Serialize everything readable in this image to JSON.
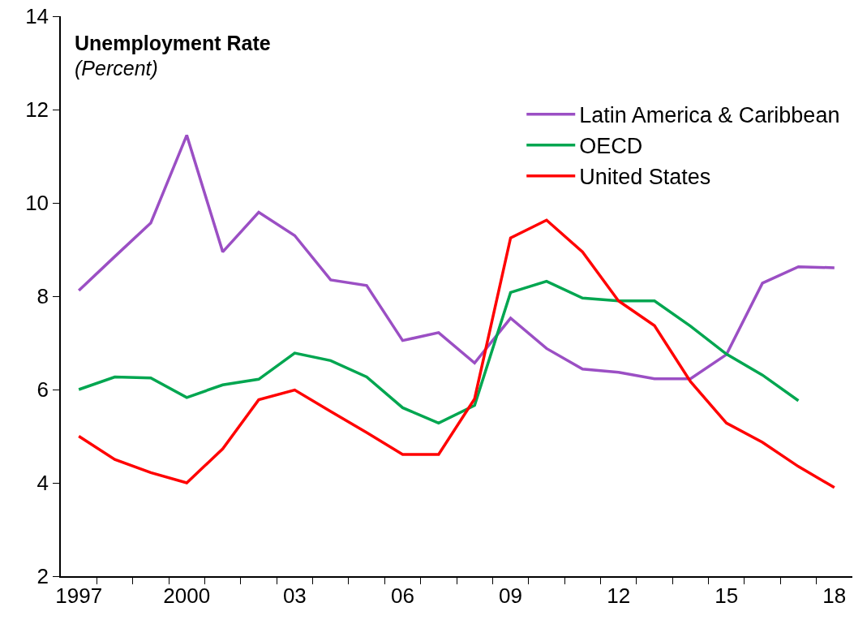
{
  "chart_data": {
    "type": "line",
    "title": "Unemployment Rate",
    "subtitle": "(Percent)",
    "categories": [
      "1997",
      null,
      null,
      "2000",
      null,
      null,
      "03",
      null,
      null,
      "06",
      null,
      null,
      "09",
      null,
      null,
      "12",
      null,
      null,
      "15",
      null,
      null,
      "18"
    ],
    "series": [
      {
        "name": "Latin America & Caribbean",
        "color": "#9b4fc4",
        "values": [
          8.12,
          8.85,
          9.57,
          11.45,
          8.95,
          9.8,
          9.3,
          8.35,
          8.23,
          7.05,
          7.22,
          6.57,
          7.53,
          6.88,
          6.44,
          6.37,
          6.23,
          6.23,
          6.75,
          8.28,
          8.63,
          8.61
        ]
      },
      {
        "name": "OECD",
        "color": "#00a650",
        "values": [
          6.0,
          6.27,
          6.25,
          5.83,
          6.1,
          6.22,
          6.78,
          6.62,
          6.27,
          5.61,
          5.28,
          5.66,
          8.08,
          8.32,
          7.96,
          7.9,
          7.9,
          7.36,
          6.76,
          6.31,
          5.76,
          null
        ]
      },
      {
        "name": "United States",
        "color": "#ff0000",
        "values": [
          5.0,
          4.5,
          4.22,
          4.0,
          4.73,
          5.78,
          5.99,
          5.53,
          5.08,
          4.61,
          4.61,
          5.8,
          9.25,
          9.63,
          8.95,
          7.9,
          7.37,
          6.17,
          5.28,
          4.87,
          4.35,
          3.9
        ]
      }
    ],
    "ylim": [
      2,
      14
    ],
    "yticks": [
      2,
      4,
      6,
      8,
      10,
      12,
      14
    ],
    "legend": "top right",
    "marker": "none",
    "line_style": "solid"
  }
}
